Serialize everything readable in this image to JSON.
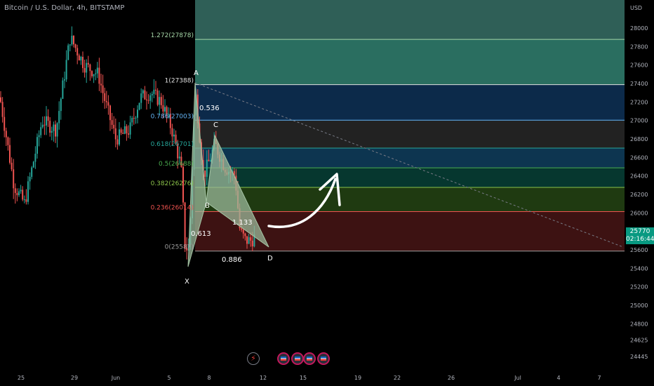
{
  "header": {
    "title": "Bitcoin / U.S. Dollar, 4h, BITSTAMP"
  },
  "price_tag": {
    "price": "25770",
    "countdown": "02:16:44"
  },
  "chart_data": {
    "type": "candlestick",
    "currency": "USD",
    "y_ticks": [
      28000,
      27800,
      27600,
      27400,
      27200,
      27000,
      26800,
      26600,
      26400,
      26200,
      26000,
      25800,
      25600,
      25400,
      25200,
      25000,
      24800,
      24625,
      24445
    ],
    "x_ticks": [
      "25",
      "29",
      "Jun",
      "5",
      "8",
      "12",
      "15",
      "19",
      "22",
      "26",
      "Jul",
      "4",
      "7"
    ],
    "fib_levels": [
      {
        "label": "1.272(27878)",
        "value": 27878,
        "color": "#a5d6a7",
        "fill": "#2a6e60"
      },
      {
        "label": "1(27388)",
        "value": 27388,
        "color": "#e0e0e0",
        "fill": "#0c2a4a"
      },
      {
        "label": "0.786(27003)",
        "value": 27003,
        "color": "#64b5f6",
        "fill": "#222222"
      },
      {
        "label": "0.618(26701)",
        "value": 26701,
        "color": "#26a69a",
        "fill": "#0d3550"
      },
      {
        "label": "0.5(26488)",
        "value": 26488,
        "color": "#4caf50",
        "fill": "#06372f"
      },
      {
        "label": "0.382(26276)",
        "value": 26276,
        "color": "#8bc34a",
        "fill": "#1f3a11"
      },
      {
        "label": "0.236(26014)",
        "value": 26014,
        "color": "#ef5350",
        "fill": "#1a2f22"
      },
      {
        "label": "0(25587)",
        "value": 25587,
        "color": "#9e9e9e",
        "fill": "#3d1212"
      }
    ],
    "pattern_points": [
      "X",
      "A",
      "B",
      "C",
      "D"
    ],
    "pattern_ratios": [
      "0.536",
      "0.613",
      "1.133",
      "0.886"
    ]
  },
  "events": {
    "count": 5
  }
}
